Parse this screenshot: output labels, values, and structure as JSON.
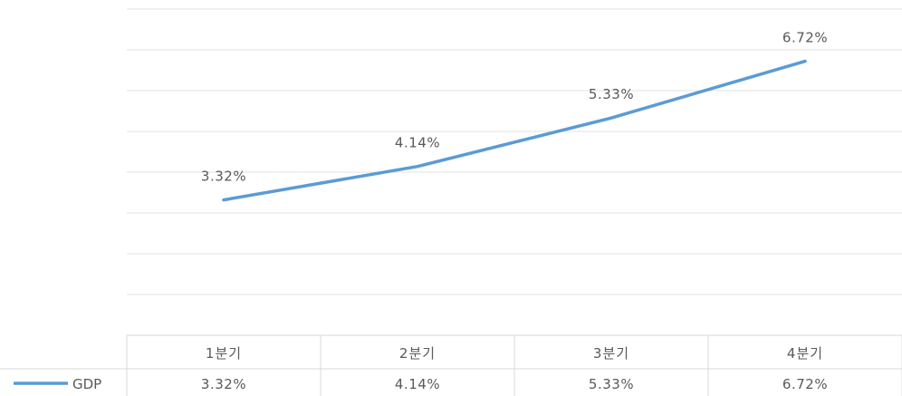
{
  "chart_data": {
    "type": "line",
    "categories": [
      "1분기",
      "2분기",
      "3분기",
      "4분기"
    ],
    "series": [
      {
        "name": "GDP",
        "values": [
          3.32,
          4.14,
          5.33,
          6.72
        ],
        "labels": [
          "3.32%",
          "4.14%",
          "5.33%",
          "6.72%"
        ]
      }
    ],
    "ylim": [
      0,
      8
    ],
    "grid": true,
    "legend": "data-table-left",
    "data_table": true,
    "line_color": "#5b9bd5"
  }
}
